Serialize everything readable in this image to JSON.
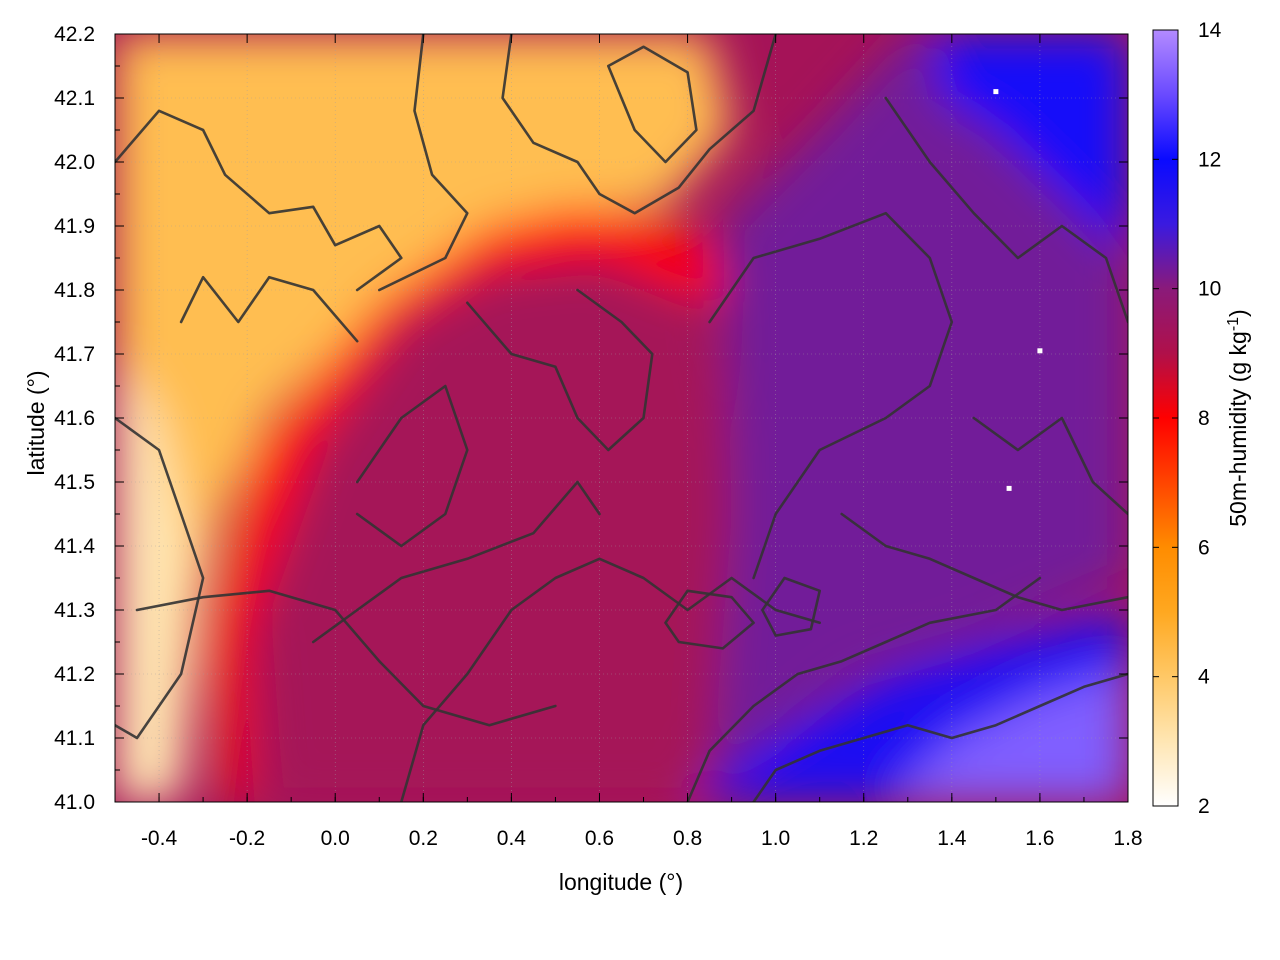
{
  "chart_data": {
    "type": "heatmap",
    "xlabel": "longitude (°)",
    "ylabel": "latitude (°)",
    "colorbar_label": "50m-humidity (g kg",
    "colorbar_label_exp": "-1",
    "colorbar_label_end": ")",
    "xlim": [
      -0.5,
      1.8
    ],
    "ylim": [
      41.0,
      42.2
    ],
    "clim": [
      2,
      14
    ],
    "x_ticks": [
      -0.4,
      -0.2,
      0.0,
      0.2,
      0.4,
      0.6,
      0.8,
      1.0,
      1.2,
      1.4,
      1.6,
      1.8
    ],
    "x_tick_labels": [
      "-0.4",
      "-0.2",
      "0.0",
      "0.2",
      "0.4",
      "0.6",
      "0.8",
      "1.0",
      "1.2",
      "1.4",
      "1.6",
      "1.8"
    ],
    "y_ticks": [
      41.0,
      41.1,
      41.2,
      41.3,
      41.4,
      41.5,
      41.6,
      41.7,
      41.8,
      41.9,
      42.0,
      42.1,
      42.2
    ],
    "y_tick_labels": [
      "41.0",
      "41.1",
      "41.2",
      "41.3",
      "41.4",
      "41.5",
      "41.6",
      "41.7",
      "41.8",
      "41.9",
      "42.0",
      "42.1",
      "42.2"
    ],
    "cbar_ticks": [
      2,
      4,
      6,
      8,
      10,
      12,
      14
    ],
    "cbar_tick_labels": [
      "2",
      "4",
      "6",
      "8",
      "10",
      "12",
      "14"
    ],
    "colormap": [
      {
        "v": 2,
        "color": "#ffffff"
      },
      {
        "v": 3,
        "color": "#ffe6b3"
      },
      {
        "v": 4,
        "color": "#ffc866"
      },
      {
        "v": 5,
        "color": "#ffa820"
      },
      {
        "v": 6,
        "color": "#ff8c00"
      },
      {
        "v": 7,
        "color": "#ff4500"
      },
      {
        "v": 8,
        "color": "#ff0000"
      },
      {
        "v": 9,
        "color": "#b0104a"
      },
      {
        "v": 10,
        "color": "#8a1a7a"
      },
      {
        "v": 11,
        "color": "#3a1ae0"
      },
      {
        "v": 12,
        "color": "#0a0aff"
      },
      {
        "v": 13,
        "color": "#6a4aff"
      },
      {
        "v": 14,
        "color": "#b38bff"
      }
    ],
    "regions": [
      {
        "name": "dry-inland-northwest",
        "value": 4.3,
        "outline": [
          [
            -0.5,
            42.2
          ],
          [
            0.85,
            42.2
          ],
          [
            0.9,
            42.05
          ],
          [
            0.75,
            41.93
          ],
          [
            0.55,
            41.92
          ],
          [
            0.35,
            41.88
          ],
          [
            0.15,
            41.78
          ],
          [
            0.0,
            41.7
          ],
          [
            -0.15,
            41.6
          ],
          [
            -0.25,
            41.45
          ],
          [
            -0.3,
            41.3
          ],
          [
            -0.35,
            41.0
          ],
          [
            -0.5,
            41.0
          ]
        ]
      },
      {
        "name": "dry-west-edge",
        "value": 3.0,
        "outline": [
          [
            -0.5,
            41.7
          ],
          [
            -0.4,
            41.6
          ],
          [
            -0.33,
            41.4
          ],
          [
            -0.35,
            41.0
          ],
          [
            -0.5,
            41.0
          ]
        ]
      },
      {
        "name": "moist-front-band",
        "value": 8.0,
        "outline": [
          [
            0.1,
            41.78
          ],
          [
            0.35,
            41.9
          ],
          [
            0.55,
            41.93
          ],
          [
            0.8,
            41.9
          ],
          [
            0.9,
            41.8
          ],
          [
            0.8,
            41.78
          ],
          [
            0.5,
            41.82
          ],
          [
            0.3,
            41.78
          ],
          [
            0.05,
            41.6
          ],
          [
            -0.1,
            41.45
          ],
          [
            -0.2,
            41.25
          ],
          [
            -0.2,
            41.0
          ],
          [
            -0.25,
            41.0
          ],
          [
            -0.28,
            41.25
          ],
          [
            -0.18,
            41.55
          ],
          [
            0.0,
            41.7
          ]
        ]
      },
      {
        "name": "moist-core",
        "value": 9.3,
        "outline": [
          [
            -0.15,
            41.0
          ],
          [
            -0.18,
            41.3
          ],
          [
            -0.05,
            41.55
          ],
          [
            0.15,
            41.75
          ],
          [
            0.35,
            41.83
          ],
          [
            0.6,
            41.85
          ],
          [
            0.85,
            41.78
          ],
          [
            0.9,
            41.55
          ],
          [
            0.9,
            41.2
          ],
          [
            0.8,
            41.0
          ]
        ]
      },
      {
        "name": "humid-east",
        "value": 10.3,
        "outline": [
          [
            0.88,
            41.9
          ],
          [
            1.1,
            42.05
          ],
          [
            1.3,
            42.2
          ],
          [
            1.8,
            42.2
          ],
          [
            1.8,
            41.35
          ],
          [
            1.45,
            41.25
          ],
          [
            1.2,
            41.2
          ],
          [
            1.0,
            41.1
          ],
          [
            0.85,
            41.0
          ],
          [
            0.9,
            41.45
          ]
        ]
      },
      {
        "name": "very-humid-northeast",
        "value": 11.8,
        "outline": [
          [
            1.35,
            42.2
          ],
          [
            1.8,
            42.2
          ],
          [
            1.8,
            41.85
          ],
          [
            1.65,
            41.95
          ],
          [
            1.5,
            42.05
          ],
          [
            1.38,
            42.1
          ]
        ]
      },
      {
        "name": "very-humid-southeast",
        "value": 11.6,
        "outline": [
          [
            0.8,
            41.0
          ],
          [
            1.8,
            41.0
          ],
          [
            1.8,
            41.3
          ],
          [
            1.5,
            41.25
          ],
          [
            1.25,
            41.2
          ],
          [
            1.05,
            41.12
          ]
        ]
      },
      {
        "name": "coastal-sea",
        "value": 13.3,
        "outline": [
          [
            1.25,
            41.0
          ],
          [
            1.8,
            41.0
          ],
          [
            1.8,
            41.21
          ],
          [
            1.6,
            41.17
          ],
          [
            1.4,
            41.1
          ]
        ]
      }
    ],
    "contours": [
      {
        "name": "ridge-north-1",
        "points": [
          [
            -0.5,
            42.0
          ],
          [
            -0.4,
            42.08
          ],
          [
            -0.3,
            42.05
          ],
          [
            -0.25,
            41.98
          ],
          [
            -0.15,
            41.92
          ],
          [
            -0.05,
            41.93
          ],
          [
            0.0,
            41.87
          ],
          [
            0.1,
            41.9
          ],
          [
            0.15,
            41.85
          ],
          [
            0.05,
            41.8
          ]
        ]
      },
      {
        "name": "ridge-north-2",
        "points": [
          [
            -0.35,
            41.75
          ],
          [
            -0.3,
            41.82
          ],
          [
            -0.22,
            41.75
          ],
          [
            -0.15,
            41.82
          ],
          [
            -0.05,
            41.8
          ],
          [
            0.05,
            41.72
          ]
        ]
      },
      {
        "name": "ridge-north-3",
        "points": [
          [
            0.2,
            42.2
          ],
          [
            0.18,
            42.08
          ],
          [
            0.22,
            41.98
          ],
          [
            0.3,
            41.92
          ],
          [
            0.25,
            41.85
          ],
          [
            0.1,
            41.8
          ]
        ]
      },
      {
        "name": "loop-north-a",
        "points": [
          [
            0.62,
            42.15
          ],
          [
            0.7,
            42.18
          ],
          [
            0.8,
            42.14
          ],
          [
            0.82,
            42.05
          ],
          [
            0.75,
            42.0
          ],
          [
            0.68,
            42.05
          ],
          [
            0.62,
            42.15
          ]
        ]
      },
      {
        "name": "loop-north-b",
        "points": [
          [
            0.4,
            42.2
          ],
          [
            0.38,
            42.1
          ],
          [
            0.45,
            42.03
          ],
          [
            0.55,
            42.0
          ],
          [
            0.6,
            41.95
          ],
          [
            0.68,
            41.92
          ],
          [
            0.78,
            41.96
          ],
          [
            0.85,
            42.02
          ],
          [
            0.95,
            42.08
          ],
          [
            1.0,
            42.2
          ]
        ]
      },
      {
        "name": "mid-west-1",
        "points": [
          [
            -0.5,
            41.6
          ],
          [
            -0.4,
            41.55
          ],
          [
            -0.35,
            41.45
          ],
          [
            -0.3,
            41.35
          ],
          [
            -0.35,
            41.2
          ],
          [
            -0.45,
            41.1
          ],
          [
            -0.5,
            41.12
          ]
        ]
      },
      {
        "name": "mid-west-2",
        "points": [
          [
            -0.45,
            41.3
          ],
          [
            -0.3,
            41.32
          ],
          [
            -0.15,
            41.33
          ],
          [
            0.0,
            41.3
          ],
          [
            0.1,
            41.22
          ],
          [
            0.2,
            41.15
          ],
          [
            0.35,
            41.12
          ],
          [
            0.5,
            41.15
          ]
        ]
      },
      {
        "name": "core-1",
        "points": [
          [
            0.05,
            41.5
          ],
          [
            0.15,
            41.6
          ],
          [
            0.25,
            41.65
          ],
          [
            0.3,
            41.55
          ],
          [
            0.25,
            41.45
          ],
          [
            0.15,
            41.4
          ],
          [
            0.05,
            41.45
          ]
        ]
      },
      {
        "name": "core-2",
        "points": [
          [
            0.3,
            41.78
          ],
          [
            0.4,
            41.7
          ],
          [
            0.5,
            41.68
          ],
          [
            0.55,
            41.6
          ],
          [
            0.62,
            41.55
          ],
          [
            0.7,
            41.6
          ],
          [
            0.72,
            41.7
          ],
          [
            0.65,
            41.75
          ],
          [
            0.55,
            41.8
          ]
        ]
      },
      {
        "name": "core-3",
        "points": [
          [
            0.15,
            41.0
          ],
          [
            0.2,
            41.12
          ],
          [
            0.3,
            41.2
          ],
          [
            0.4,
            41.3
          ],
          [
            0.5,
            41.35
          ],
          [
            0.6,
            41.38
          ],
          [
            0.7,
            41.35
          ],
          [
            0.8,
            41.3
          ],
          [
            0.9,
            41.35
          ],
          [
            1.0,
            41.3
          ],
          [
            1.1,
            41.28
          ]
        ]
      },
      {
        "name": "core-4",
        "points": [
          [
            -0.05,
            41.25
          ],
          [
            0.05,
            41.3
          ],
          [
            0.15,
            41.35
          ],
          [
            0.3,
            41.38
          ],
          [
            0.45,
            41.42
          ],
          [
            0.55,
            41.5
          ],
          [
            0.6,
            41.45
          ]
        ]
      },
      {
        "name": "east-1",
        "points": [
          [
            0.85,
            41.75
          ],
          [
            0.95,
            41.85
          ],
          [
            1.1,
            41.88
          ],
          [
            1.25,
            41.92
          ],
          [
            1.35,
            41.85
          ],
          [
            1.4,
            41.75
          ],
          [
            1.35,
            41.65
          ],
          [
            1.25,
            41.6
          ],
          [
            1.1,
            41.55
          ],
          [
            1.0,
            41.45
          ],
          [
            0.95,
            41.35
          ]
        ]
      },
      {
        "name": "east-2",
        "points": [
          [
            1.25,
            42.1
          ],
          [
            1.35,
            42.0
          ],
          [
            1.45,
            41.92
          ],
          [
            1.55,
            41.85
          ],
          [
            1.65,
            41.9
          ],
          [
            1.75,
            41.85
          ],
          [
            1.8,
            41.75
          ]
        ]
      },
      {
        "name": "east-3",
        "points": [
          [
            1.45,
            41.6
          ],
          [
            1.55,
            41.55
          ],
          [
            1.65,
            41.6
          ],
          [
            1.72,
            41.5
          ],
          [
            1.8,
            41.45
          ]
        ]
      },
      {
        "name": "east-4",
        "points": [
          [
            1.15,
            41.45
          ],
          [
            1.25,
            41.4
          ],
          [
            1.35,
            41.38
          ],
          [
            1.45,
            41.35
          ],
          [
            1.55,
            41.32
          ],
          [
            1.65,
            41.3
          ],
          [
            1.8,
            41.32
          ]
        ]
      },
      {
        "name": "southeast-1",
        "points": [
          [
            0.8,
            41.0
          ],
          [
            0.85,
            41.08
          ],
          [
            0.95,
            41.15
          ],
          [
            1.05,
            41.2
          ],
          [
            1.15,
            41.22
          ],
          [
            1.25,
            41.25
          ],
          [
            1.35,
            41.28
          ],
          [
            1.5,
            41.3
          ],
          [
            1.6,
            41.35
          ]
        ]
      },
      {
        "name": "southeast-2",
        "points": [
          [
            0.95,
            41.0
          ],
          [
            1.0,
            41.05
          ],
          [
            1.1,
            41.08
          ],
          [
            1.2,
            41.1
          ],
          [
            1.3,
            41.12
          ],
          [
            1.4,
            41.1
          ],
          [
            1.5,
            41.12
          ],
          [
            1.6,
            41.15
          ],
          [
            1.7,
            41.18
          ],
          [
            1.8,
            41.2
          ]
        ]
      },
      {
        "name": "loop-south-a",
        "points": [
          [
            0.75,
            41.28
          ],
          [
            0.8,
            41.33
          ],
          [
            0.9,
            41.32
          ],
          [
            0.95,
            41.28
          ],
          [
            0.88,
            41.24
          ],
          [
            0.78,
            41.25
          ],
          [
            0.75,
            41.28
          ]
        ]
      },
      {
        "name": "loop-south-b",
        "points": [
          [
            0.97,
            41.3
          ],
          [
            1.02,
            41.35
          ],
          [
            1.1,
            41.33
          ],
          [
            1.08,
            41.27
          ],
          [
            1.0,
            41.26
          ],
          [
            0.97,
            41.3
          ]
        ]
      }
    ],
    "markers": [
      {
        "x": 1.5,
        "y": 42.11
      },
      {
        "x": 1.6,
        "y": 41.705
      },
      {
        "x": 1.53,
        "y": 41.49
      }
    ]
  }
}
